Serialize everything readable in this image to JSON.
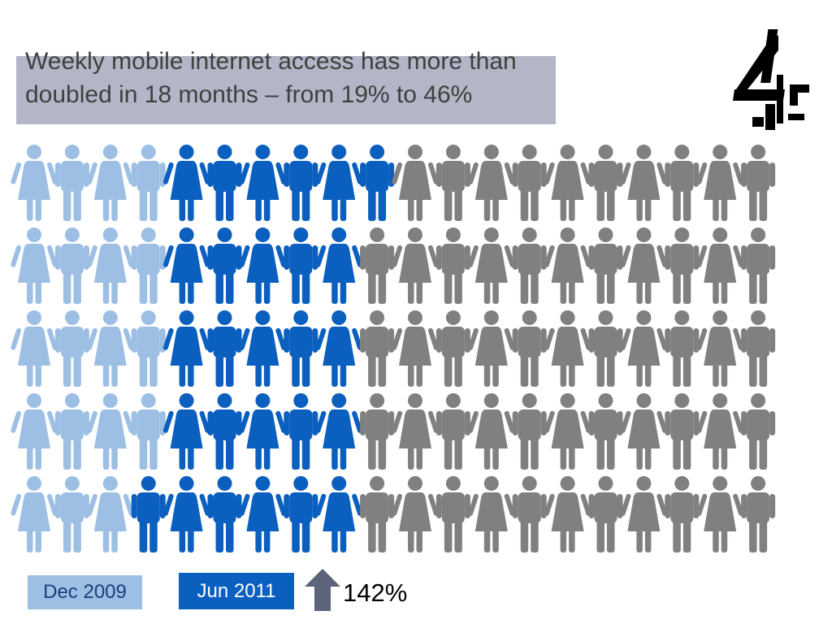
{
  "title": "Weekly mobile internet access has more than doubled in 18 months – from 19% to 46%",
  "logo": {
    "icon": "channel-4-logo-icon"
  },
  "colors": {
    "dec_2009": "#9dbfe4",
    "jun_2011": "#0b5fbf",
    "remaining": "#808080",
    "title_box": "#b3b6c6",
    "arrow": "#5b6478"
  },
  "chart_data": {
    "type": "pictogram",
    "total_figures": 100,
    "rows": 5,
    "figures_per_row": 20,
    "series": [
      {
        "name": "Dec 2009",
        "value_percent": 19,
        "figures_per_row": [
          4,
          4,
          4,
          4,
          3
        ]
      },
      {
        "name": "Jun 2011",
        "value_percent": 46,
        "figures_per_row": [
          10,
          9,
          9,
          9,
          9
        ]
      }
    ],
    "legend": [
      "Dec 2009",
      "Jun 2011"
    ],
    "change_label": "142%"
  },
  "legend": {
    "prev_label": "Dec 2009",
    "curr_label": "Jun 2011"
  },
  "change": {
    "label": "142%",
    "icon": "up-arrow-icon"
  }
}
